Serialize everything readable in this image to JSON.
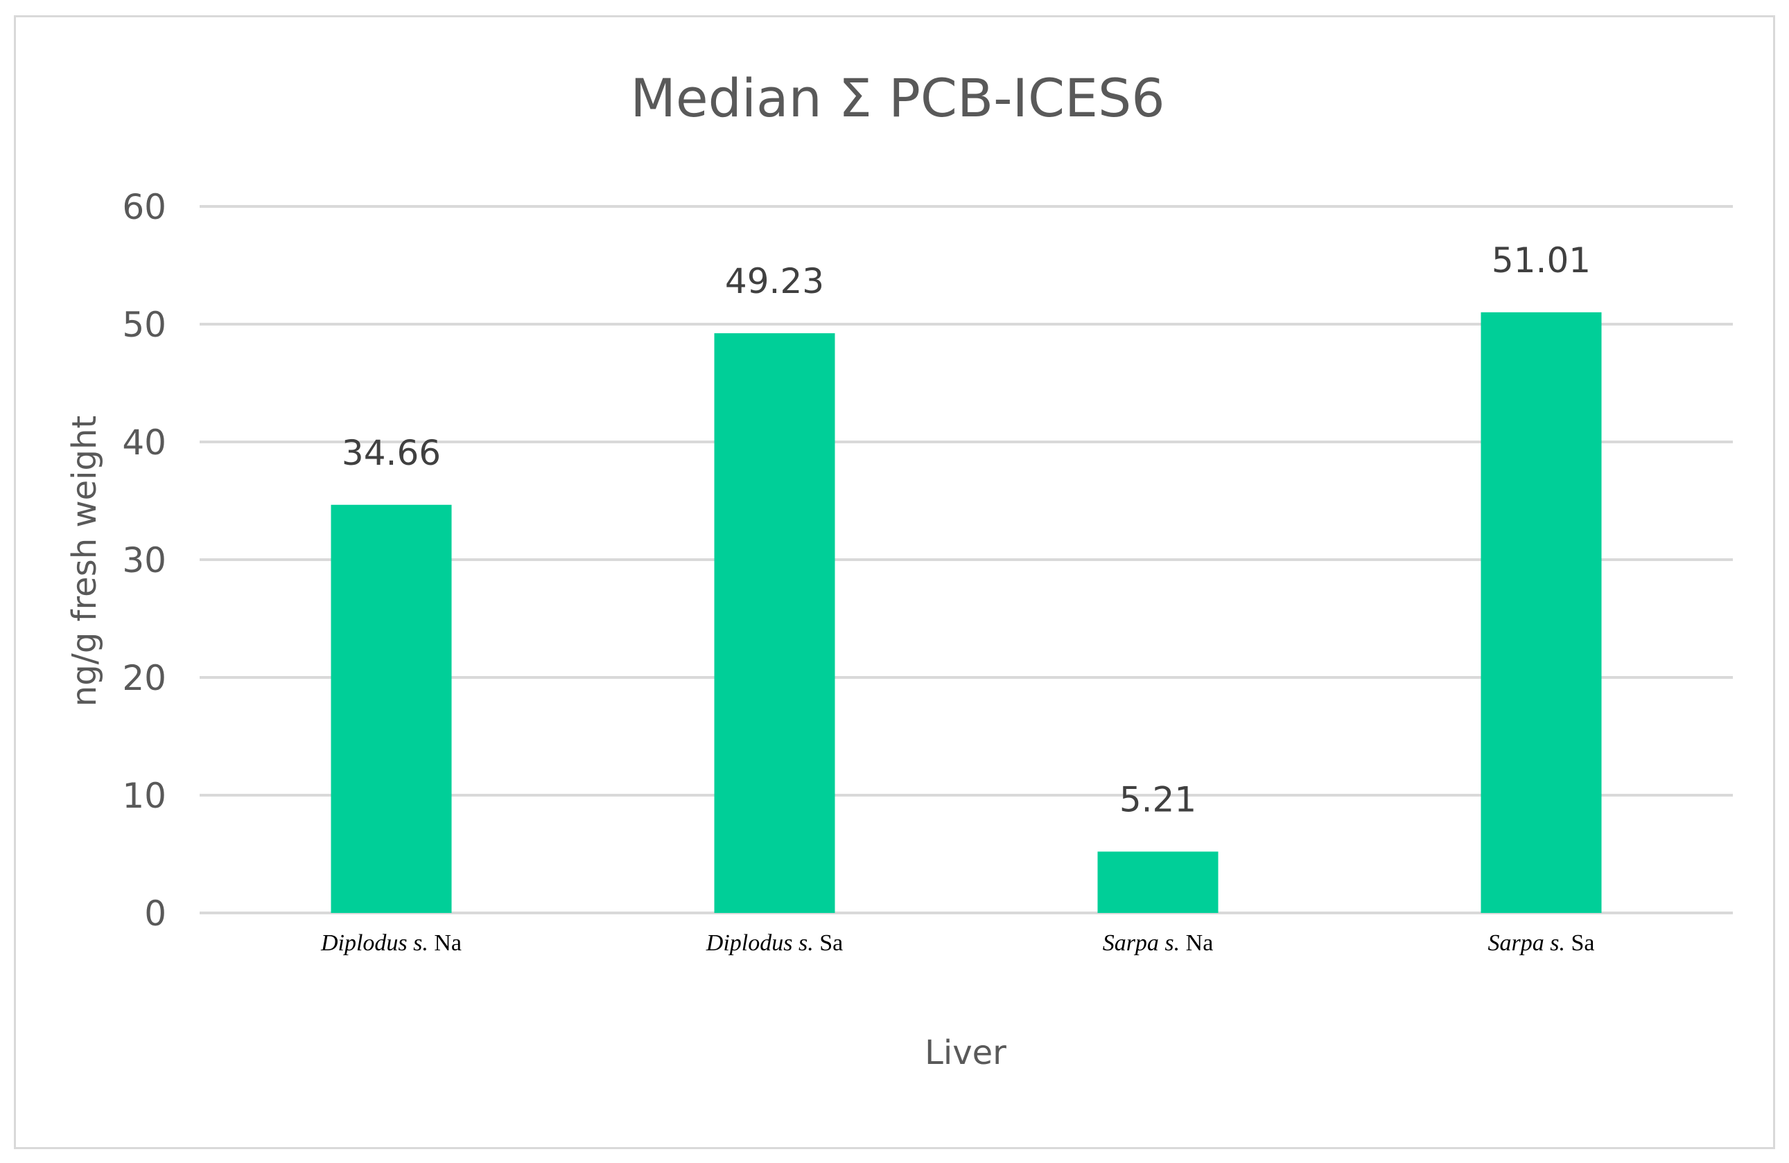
{
  "colors": {
    "bar": "#00cf98",
    "grid": "#d9d9d9",
    "text": "#595959",
    "frame": "#d9d9d9"
  },
  "chart_data": {
    "type": "bar",
    "title": "Median Σ PCB-ICES6",
    "xlabel": "Liver",
    "ylabel": "ng/g fresh weight",
    "categories": [
      {
        "italic": "Diplodus s.",
        "rest": " Na"
      },
      {
        "italic": "Diplodus s.",
        "rest": " Sa"
      },
      {
        "italic": "Sarpa s.",
        "rest": " Na"
      },
      {
        "italic": "Sarpa s.",
        "rest": " Sa"
      }
    ],
    "values": [
      34.66,
      49.23,
      5.21,
      51.01
    ],
    "data_labels": [
      "34.66",
      "49.23",
      "5.21",
      "51.01"
    ],
    "ylim": [
      0,
      60
    ],
    "yticks": [
      "0",
      "10",
      "20",
      "30",
      "40",
      "50",
      "60"
    ],
    "grid": true,
    "legend": "none"
  }
}
